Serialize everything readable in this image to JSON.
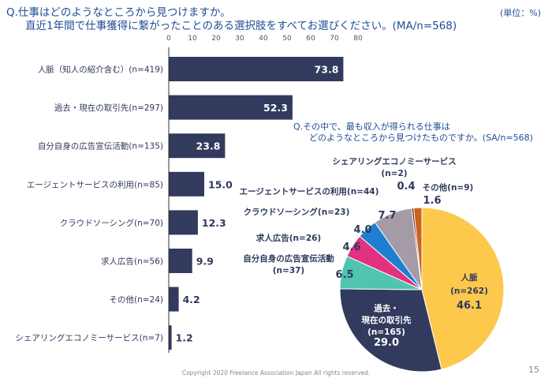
{
  "header": {
    "question_line1": "Q.仕事はどのようなところから見つけますか。",
    "question_line2": "直近1年間で仕事獲得に繋がったことのある選択肢をすべてお選びください。(MA/n=568)",
    "unit": "(単位：%)"
  },
  "footer": {
    "copyright": "Copyright 2020 Freelance Association Japan  All rights reserved.",
    "page_number": "15"
  },
  "chart_data": [
    {
      "type": "bar",
      "orientation": "horizontal",
      "xlim": [
        0,
        80
      ],
      "x_ticks": [
        "0",
        "10",
        "20",
        "30",
        "40",
        "50",
        "60",
        "70",
        "80"
      ],
      "color": "#323a5e",
      "categories": [
        "人脈（知人の紹介含む）(n=419)",
        "過去・現在の取引先(n=297)",
        "自分自身の広告宣伝活動(n=135)",
        "エージェントサービスの利用(n=85)",
        "クラウドソーシング(n=70)",
        "求人広告(n=56)",
        "その他(n=24)",
        "シェアリングエコノミーサービス(n=7)"
      ],
      "values": [
        73.8,
        52.3,
        23.8,
        15.0,
        12.3,
        9.9,
        4.2,
        1.2
      ],
      "value_labels": [
        "73.8",
        "52.3",
        "23.8",
        "15.0",
        "12.3",
        "9.9",
        "4.2",
        "1.2"
      ]
    },
    {
      "type": "pie",
      "title_line1": "Q.その中で、最も収入が得られる仕事は",
      "title_line2": "どのようなところから見つけたものですか。(SA/n=568)",
      "slices": [
        {
          "name": "人脈",
          "n": "(n=262)",
          "value": 46.1,
          "label": "46.1",
          "color": "#fcc94c"
        },
        {
          "name": "過去・現在の取引先",
          "n": "(n=165)",
          "value": 29.0,
          "label": "29.0",
          "color": "#323a5e"
        },
        {
          "name": "自分自身の広告宣伝活動",
          "n": "(n=37)",
          "value": 6.5,
          "label": "6.5",
          "color": "#4fc4b0"
        },
        {
          "name": "求人広告",
          "n": "(n=26)",
          "value": 4.6,
          "label": "4.6",
          "color": "#e0327f"
        },
        {
          "name": "クラウドソーシング",
          "n": "(n=23)",
          "value": 4.0,
          "label": "4.0",
          "color": "#1e7fd0"
        },
        {
          "name": "エージェントサービスの利用",
          "n": "(n=44)",
          "value": 7.7,
          "label": "7.7",
          "color": "#a49ba6"
        },
        {
          "name": "シェアリングエコノミーサービス",
          "n": "(n=2)",
          "value": 0.4,
          "label": "0.4",
          "color": "#7a1c1c"
        },
        {
          "name": "その他",
          "n": "(n=9)",
          "value": 1.6,
          "label": "1.6",
          "color": "#c8641e"
        }
      ]
    }
  ]
}
